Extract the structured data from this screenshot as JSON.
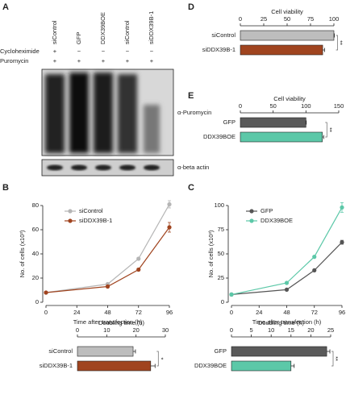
{
  "panels": [
    "A",
    "B",
    "C",
    "D",
    "E"
  ],
  "blot": {
    "lanes": [
      "siControl",
      "GFP",
      "DDX39BOE",
      "siControl",
      "siDDX39B-1"
    ],
    "rows": [
      {
        "label": "Cycloheximide",
        "signs": [
          "+",
          "−",
          "−",
          "−",
          "−"
        ]
      },
      {
        "label": "Puromycin",
        "signs": [
          "+",
          "+",
          "+",
          "+",
          "+"
        ]
      }
    ],
    "antibodies": [
      "α-Puromycin",
      "α-beta actin"
    ]
  },
  "chart_data": [
    {
      "type": "line",
      "ylabel": "No. of cells (x10³)",
      "xlabel": "Time after transfection (h)",
      "x": [
        0,
        48,
        72,
        96
      ],
      "xlim": [
        0,
        96
      ],
      "xticks": [
        0,
        24,
        48,
        72,
        96
      ],
      "ylim": [
        0,
        80
      ],
      "yticks": [
        0,
        20,
        40,
        60,
        80
      ],
      "series": [
        {
          "name": "siControl",
          "color": "#b5b5b5",
          "values": [
            8,
            15,
            36,
            81
          ],
          "errors": [
            0.5,
            1,
            1,
            3
          ]
        },
        {
          "name": "siDDX39B-1",
          "color": "#a0441f",
          "values": [
            8,
            13,
            27,
            62
          ],
          "errors": [
            0.5,
            1,
            1,
            4
          ]
        }
      ]
    },
    {
      "type": "bar",
      "title": "Doubling time (h)",
      "xlim": [
        0,
        30
      ],
      "xticks": [
        0,
        10,
        20,
        30
      ],
      "categories": [
        "siControl",
        "siDDX39B-1"
      ],
      "values": [
        19,
        25
      ],
      "errors": [
        0.8,
        1.5
      ],
      "colors": [
        "#bdbdbd",
        "#a0441f"
      ],
      "annotation": "*"
    },
    {
      "type": "line",
      "ylabel": "No. of cells (x10³)",
      "xlabel": "Time after transfection (h)",
      "x": [
        0,
        48,
        72,
        96
      ],
      "xlim": [
        0,
        96
      ],
      "xticks": [
        0,
        24,
        48,
        72,
        96
      ],
      "ylim": [
        0,
        100
      ],
      "yticks": [
        0,
        25,
        50,
        75,
        100
      ],
      "series": [
        {
          "name": "GFP",
          "color": "#555555",
          "values": [
            8,
            13,
            33,
            62
          ],
          "errors": [
            0.5,
            1,
            1,
            2
          ]
        },
        {
          "name": "DDX39BOE",
          "color": "#5cc8a8",
          "values": [
            8,
            20,
            47,
            98
          ],
          "errors": [
            0.5,
            1,
            1,
            5
          ]
        }
      ]
    },
    {
      "type": "bar",
      "title": "Doubling time (h)",
      "xlim": [
        0,
        25
      ],
      "xticks": [
        0,
        5,
        10,
        15,
        20,
        25
      ],
      "categories": [
        "GFP",
        "DDX39BOE"
      ],
      "values": [
        24,
        15
      ],
      "errors": [
        0.8,
        0.8
      ],
      "colors": [
        "#5a5a5a",
        "#5cc8a8"
      ],
      "annotation": "**"
    },
    {
      "type": "bar",
      "title": "Cell viability",
      "xlim": [
        0,
        100
      ],
      "xticks": [
        0,
        25,
        50,
        75,
        100
      ],
      "categories": [
        "siControl",
        "siDDX39B-1"
      ],
      "values": [
        100,
        88
      ],
      "errors": [
        0.5,
        2
      ],
      "colors": [
        "#bdbdbd",
        "#a0441f"
      ],
      "annotation": "**"
    },
    {
      "type": "bar",
      "title": "Cell viability",
      "xlim": [
        0,
        150
      ],
      "xticks": [
        0,
        50,
        100,
        150
      ],
      "categories": [
        "GFP",
        "DDX39BOE"
      ],
      "values": [
        100,
        125
      ],
      "errors": [
        0.5,
        2
      ],
      "colors": [
        "#5a5a5a",
        "#5cc8a8"
      ],
      "annotation": "**"
    }
  ]
}
